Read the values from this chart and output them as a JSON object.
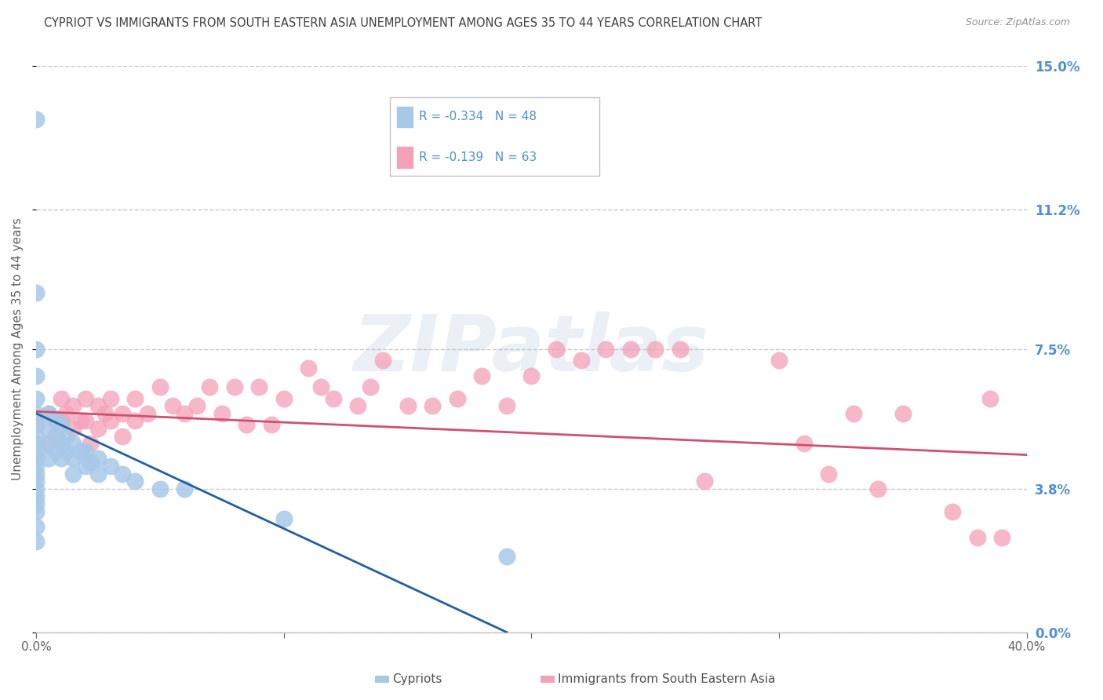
{
  "title": "CYPRIOT VS IMMIGRANTS FROM SOUTH EASTERN ASIA UNEMPLOYMENT AMONG AGES 35 TO 44 YEARS CORRELATION CHART",
  "source": "Source: ZipAtlas.com",
  "ylabel": "Unemployment Among Ages 35 to 44 years",
  "xlim": [
    0.0,
    0.4
  ],
  "ylim": [
    0.0,
    0.15
  ],
  "yticks": [
    0.0,
    0.038,
    0.075,
    0.112,
    0.15
  ],
  "ytick_labels": [
    "",
    "",
    "",
    "",
    ""
  ],
  "right_ytick_labels": [
    "0.0%",
    "3.8%",
    "7.5%",
    "11.2%",
    "15.0%"
  ],
  "xticks": [
    0.0,
    0.1,
    0.2,
    0.3,
    0.4
  ],
  "xtick_labels": [
    "0.0%",
    "",
    "",
    "",
    "40.0%"
  ],
  "cypriot_R": -0.334,
  "cypriot_N": 48,
  "immigrant_R": -0.139,
  "immigrant_N": 63,
  "cypriot_color": "#a8c8e8",
  "cypriot_edge_color": "#6090c0",
  "immigrant_color": "#f4a0b8",
  "immigrant_edge_color": "#d06080",
  "cypriot_line_color": "#2060a0",
  "immigrant_line_color": "#d05070",
  "background_color": "#ffffff",
  "grid_color": "#c8c8c8",
  "watermark_text": "ZIPatlas",
  "title_color": "#404040",
  "right_tick_color": "#5090d0",
  "legend_label_1": "Cypriots",
  "legend_label_2": "Immigrants from South Eastern Asia",
  "cypriot_scatter_x": [
    0.0,
    0.0,
    0.0,
    0.0,
    0.0,
    0.0,
    0.0,
    0.0,
    0.0,
    0.0,
    0.0,
    0.0,
    0.0,
    0.0,
    0.0,
    0.0,
    0.0,
    0.0,
    0.0,
    0.0,
    0.005,
    0.005,
    0.005,
    0.005,
    0.008,
    0.008,
    0.008,
    0.01,
    0.01,
    0.01,
    0.012,
    0.012,
    0.015,
    0.015,
    0.015,
    0.018,
    0.02,
    0.02,
    0.022,
    0.025,
    0.025,
    0.03,
    0.035,
    0.04,
    0.05,
    0.06,
    0.1,
    0.19
  ],
  "cypriot_scatter_y": [
    0.136,
    0.09,
    0.075,
    0.068,
    0.062,
    0.058,
    0.055,
    0.052,
    0.05,
    0.048,
    0.046,
    0.044,
    0.042,
    0.04,
    0.038,
    0.036,
    0.034,
    0.032,
    0.028,
    0.024,
    0.058,
    0.054,
    0.05,
    0.046,
    0.056,
    0.052,
    0.048,
    0.055,
    0.05,
    0.046,
    0.052,
    0.048,
    0.05,
    0.046,
    0.042,
    0.048,
    0.048,
    0.044,
    0.045,
    0.046,
    0.042,
    0.044,
    0.042,
    0.04,
    0.038,
    0.038,
    0.03,
    0.02
  ],
  "immigrant_scatter_x": [
    0.0,
    0.005,
    0.005,
    0.008,
    0.01,
    0.01,
    0.012,
    0.015,
    0.015,
    0.018,
    0.02,
    0.02,
    0.022,
    0.025,
    0.025,
    0.028,
    0.03,
    0.03,
    0.035,
    0.035,
    0.04,
    0.04,
    0.045,
    0.05,
    0.055,
    0.06,
    0.065,
    0.07,
    0.075,
    0.08,
    0.085,
    0.09,
    0.095,
    0.1,
    0.11,
    0.115,
    0.12,
    0.13,
    0.135,
    0.14,
    0.15,
    0.16,
    0.17,
    0.18,
    0.19,
    0.2,
    0.21,
    0.22,
    0.23,
    0.24,
    0.25,
    0.26,
    0.27,
    0.3,
    0.31,
    0.32,
    0.33,
    0.34,
    0.35,
    0.37,
    0.38,
    0.385,
    0.39
  ],
  "immigrant_scatter_y": [
    0.055,
    0.058,
    0.05,
    0.052,
    0.062,
    0.056,
    0.058,
    0.06,
    0.054,
    0.056,
    0.062,
    0.056,
    0.05,
    0.06,
    0.054,
    0.058,
    0.062,
    0.056,
    0.058,
    0.052,
    0.062,
    0.056,
    0.058,
    0.065,
    0.06,
    0.058,
    0.06,
    0.065,
    0.058,
    0.065,
    0.055,
    0.065,
    0.055,
    0.062,
    0.07,
    0.065,
    0.062,
    0.06,
    0.065,
    0.072,
    0.06,
    0.06,
    0.062,
    0.068,
    0.06,
    0.068,
    0.075,
    0.072,
    0.075,
    0.075,
    0.075,
    0.075,
    0.04,
    0.072,
    0.05,
    0.042,
    0.058,
    0.038,
    0.058,
    0.032,
    0.025,
    0.062,
    0.025
  ],
  "imm_line_x0": 0.0,
  "imm_line_y0": 0.0585,
  "imm_line_x1": 0.4,
  "imm_line_y1": 0.047,
  "cyp_line_x0": 0.0,
  "cyp_line_y0": 0.058,
  "cyp_line_x1": 0.19,
  "cyp_line_y1": 0.0
}
